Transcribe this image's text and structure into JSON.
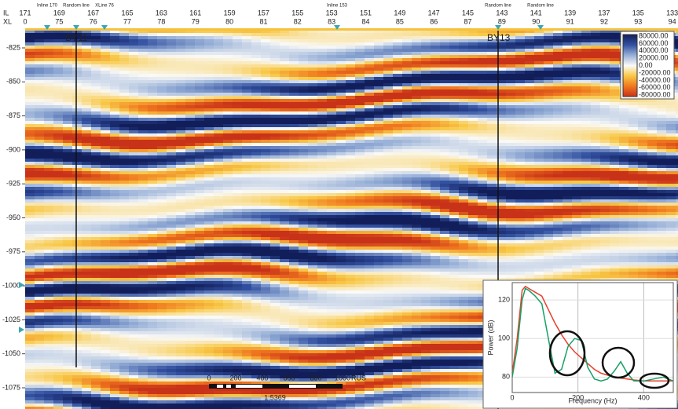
{
  "header": {
    "il_label": "IL",
    "xl_label": "XL",
    "il": [
      171,
      169,
      167,
      165,
      163,
      161,
      159,
      157,
      155,
      153,
      151,
      149,
      147,
      145,
      143,
      141,
      139,
      137,
      135,
      133
    ],
    "xl": [
      0,
      75,
      76,
      77,
      78,
      79,
      80,
      81,
      82,
      83,
      84,
      85,
      86,
      87,
      89,
      90,
      91,
      92,
      93,
      94
    ],
    "markers": [
      "Inline 170",
      "Random line",
      "XLine 76",
      "Inline 153",
      "Random line",
      "Random line"
    ]
  },
  "depth_ticks": [
    -825,
    -850,
    -875,
    -900,
    -925,
    -950,
    -975,
    -1000,
    -1025,
    -1050,
    -1075
  ],
  "wells": [
    "BY11",
    "BY13"
  ],
  "colorbar": [
    "80000.00",
    "60000.00",
    "40000.00",
    "20000.00",
    "0.00",
    "-20000.00",
    "-40000.00",
    "-60000.00",
    "-80000.00"
  ],
  "scale_bar": {
    "ticks": [
      0,
      200,
      400,
      600,
      800,
      1000
    ],
    "unit": "RUS",
    "ratio": "1:5369"
  },
  "spectrum": {
    "type": "line",
    "x_label": "Frequency (Hz)",
    "y_label": "Power (dB)",
    "xlim": [
      0,
      490
    ],
    "ylim": [
      72,
      129
    ],
    "xticks": [
      0,
      200,
      400
    ],
    "yticks": [
      80,
      100,
      120
    ],
    "grid": true,
    "x": [
      0,
      15,
      30,
      40,
      50,
      70,
      90,
      110,
      130,
      150,
      170,
      190,
      210,
      230,
      250,
      270,
      290,
      310,
      330,
      350,
      370,
      400,
      430,
      460,
      490
    ],
    "series": [
      {
        "color": "#e8402a",
        "values": [
          82,
          100,
          125,
          127,
          126,
          124,
          122,
          115,
          108,
          102,
          97,
          93,
          90,
          87,
          84,
          82,
          81,
          80,
          79.5,
          79,
          78.5,
          78,
          78,
          78,
          78
        ]
      },
      {
        "color": "#17a068",
        "values": [
          80,
          95,
          120,
          126,
          125,
          122,
          118,
          100,
          82,
          84,
          96,
          100,
          99,
          85,
          79,
          78,
          79,
          83,
          88,
          82,
          78,
          78,
          79,
          80,
          78
        ]
      }
    ]
  }
}
